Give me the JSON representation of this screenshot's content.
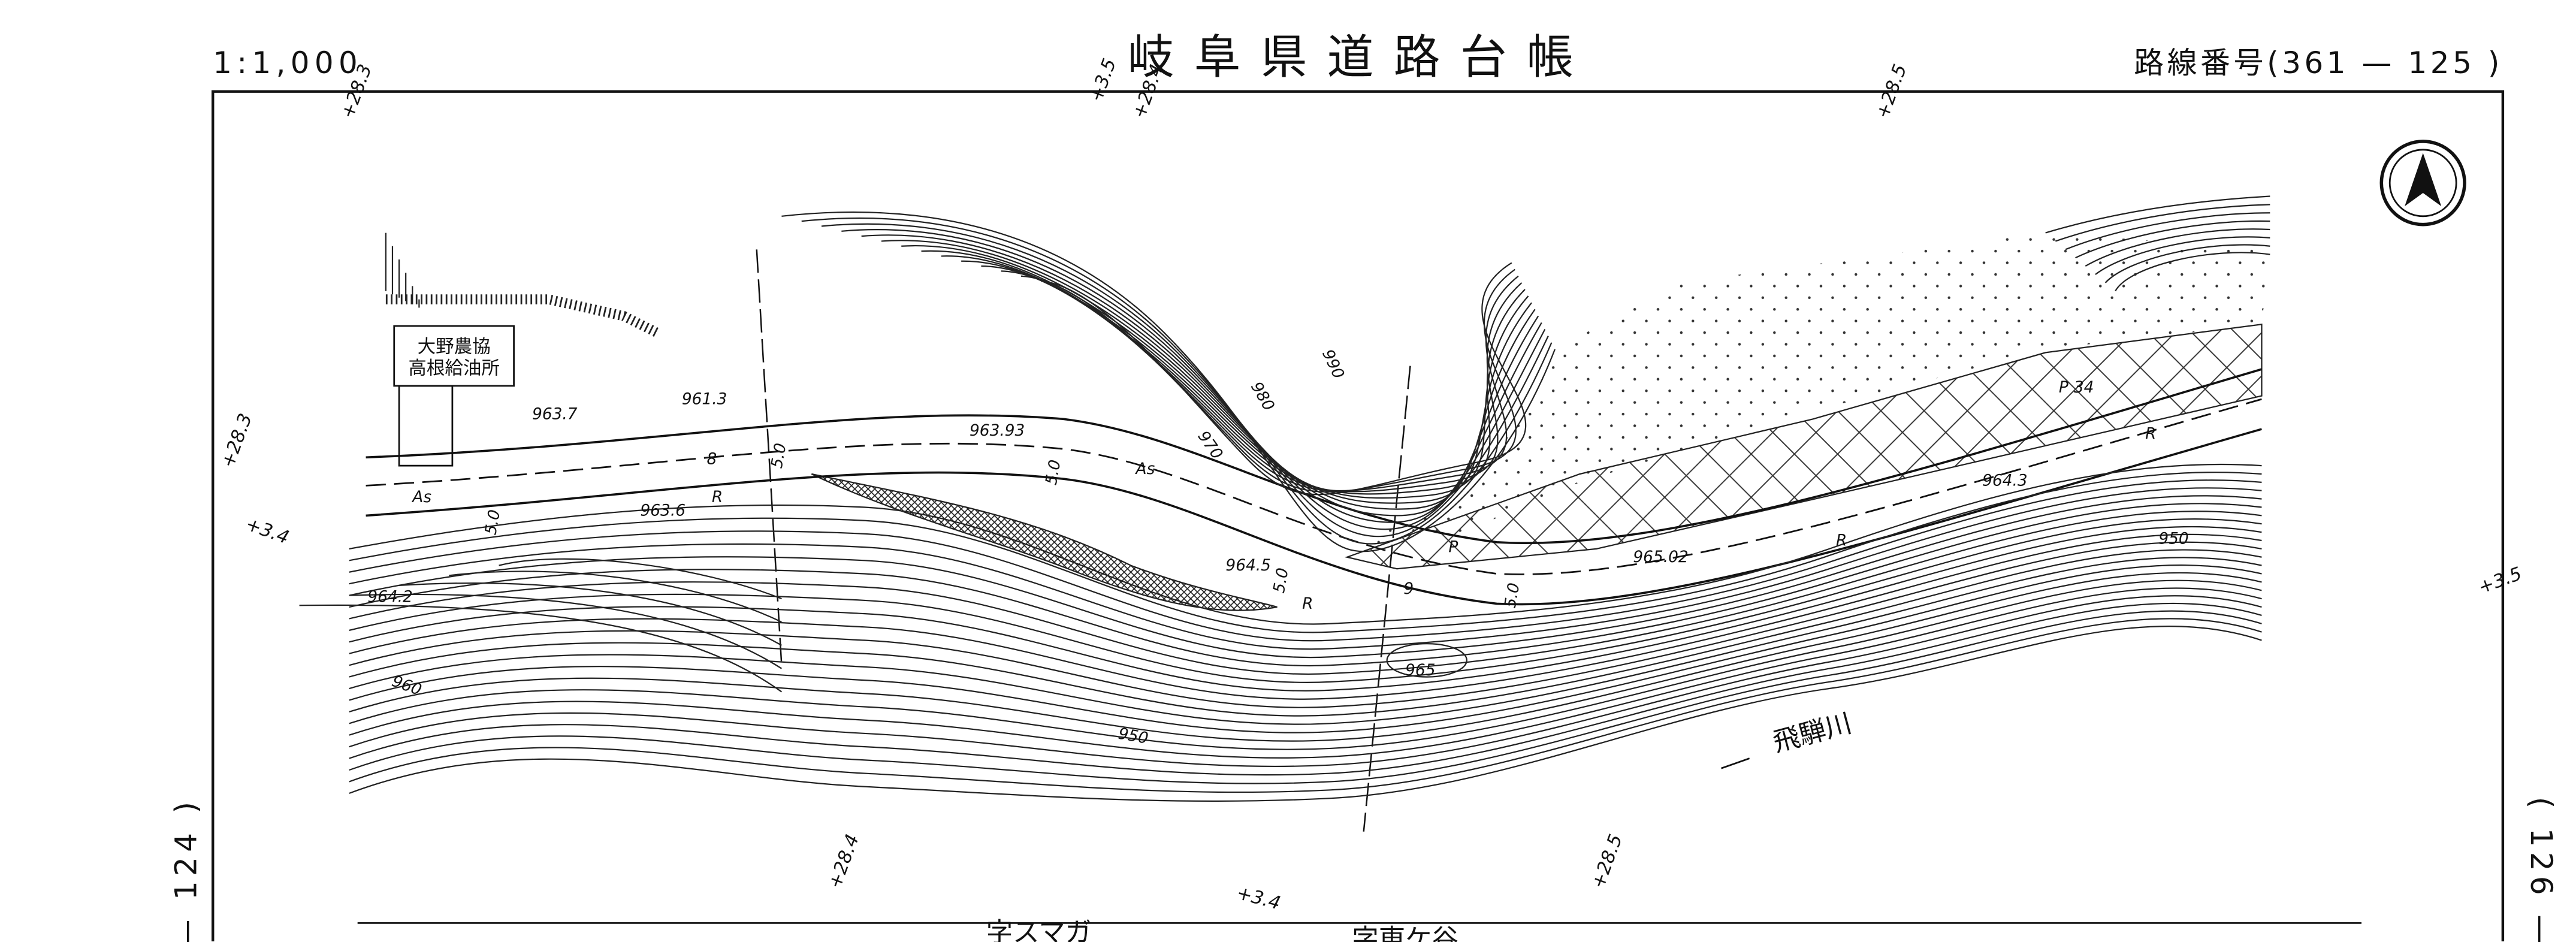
{
  "header": {
    "scale": "1:1,000",
    "title": "岐阜県道路台帳",
    "route_number": "路線番号(361 — 125 )"
  },
  "side_labels": {
    "left": "— 124 )",
    "right": "( 126 —"
  },
  "station_labels": [
    "+28.3",
    "+3.5",
    "+28.4",
    "+28.5",
    "+28.3",
    "+3.4",
    "+3.5",
    "+28.4",
    "+3.4",
    "+28.5"
  ],
  "facility": {
    "line1": "大野農協",
    "line2": "高根給油所"
  },
  "map_labels": [
    "963.7",
    "961.3",
    "963.93",
    "As",
    "As",
    "963.6",
    "8",
    "R",
    "5.0",
    "5.0",
    "5.0",
    "964.2",
    "960",
    "950",
    "965",
    "964.5",
    "5.0",
    "R",
    "9",
    "5.0",
    "965.02",
    "R",
    "964.3",
    "950",
    "34",
    "P",
    "P",
    "R",
    "970",
    "980",
    "990",
    "飛騨川",
    "字スマガ",
    "字東ケ谷"
  ]
}
